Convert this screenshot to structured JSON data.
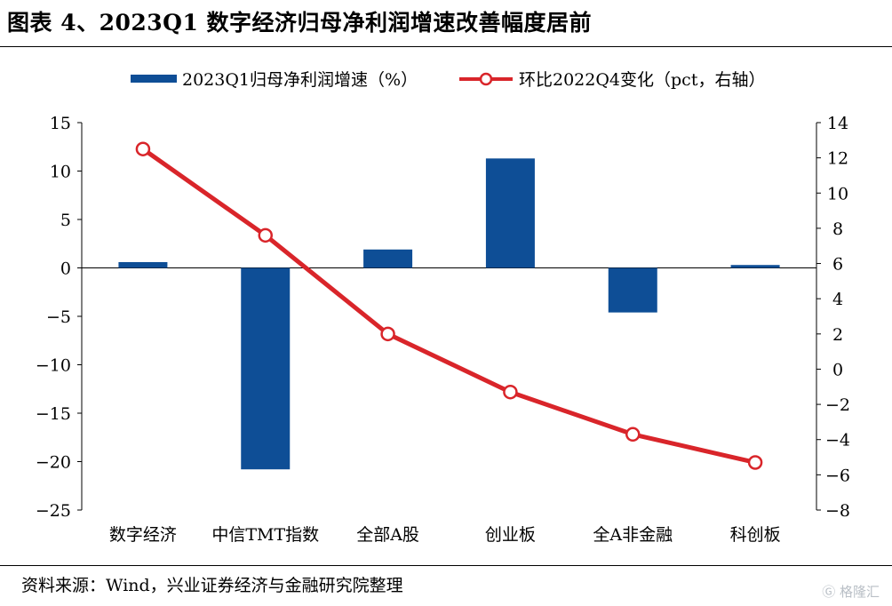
{
  "title": "图表 4、2023Q1 数字经济归母净利润增速改善幅度居前",
  "source": "资料来源：Wind，兴业证券经济与金融研究院整理",
  "watermark": "格隆汇",
  "colors": {
    "bar": "#0e4e96",
    "line": "#d9252a"
  },
  "chart_data": {
    "type": "bar",
    "categories": [
      "数字经济",
      "中信TMT指数",
      "全部A股",
      "创业板",
      "全A非金融",
      "科创板"
    ],
    "legend_position": "top",
    "grid": false,
    "series": [
      {
        "name": "2023Q1归母净利润增速（%）",
        "type": "bar",
        "axis": "left",
        "values": [
          0.6,
          -20.8,
          1.9,
          11.3,
          -4.6,
          0.3
        ]
      },
      {
        "name": "环比2022Q4变化（pct，右轴）",
        "type": "line",
        "axis": "right",
        "values": [
          12.5,
          7.6,
          2.0,
          -1.3,
          -3.7,
          -5.3
        ]
      }
    ],
    "y_left": {
      "min": -25,
      "max": 15,
      "ticks": [
        "15",
        "10",
        "5",
        "0",
        "−5",
        "−10",
        "−15",
        "−20",
        "−25"
      ]
    },
    "y_right": {
      "min": -8,
      "max": 14,
      "ticks": [
        "14",
        "12",
        "10",
        "8",
        "6",
        "4",
        "2",
        "0",
        "−2",
        "−4",
        "−6",
        "−8"
      ]
    }
  }
}
